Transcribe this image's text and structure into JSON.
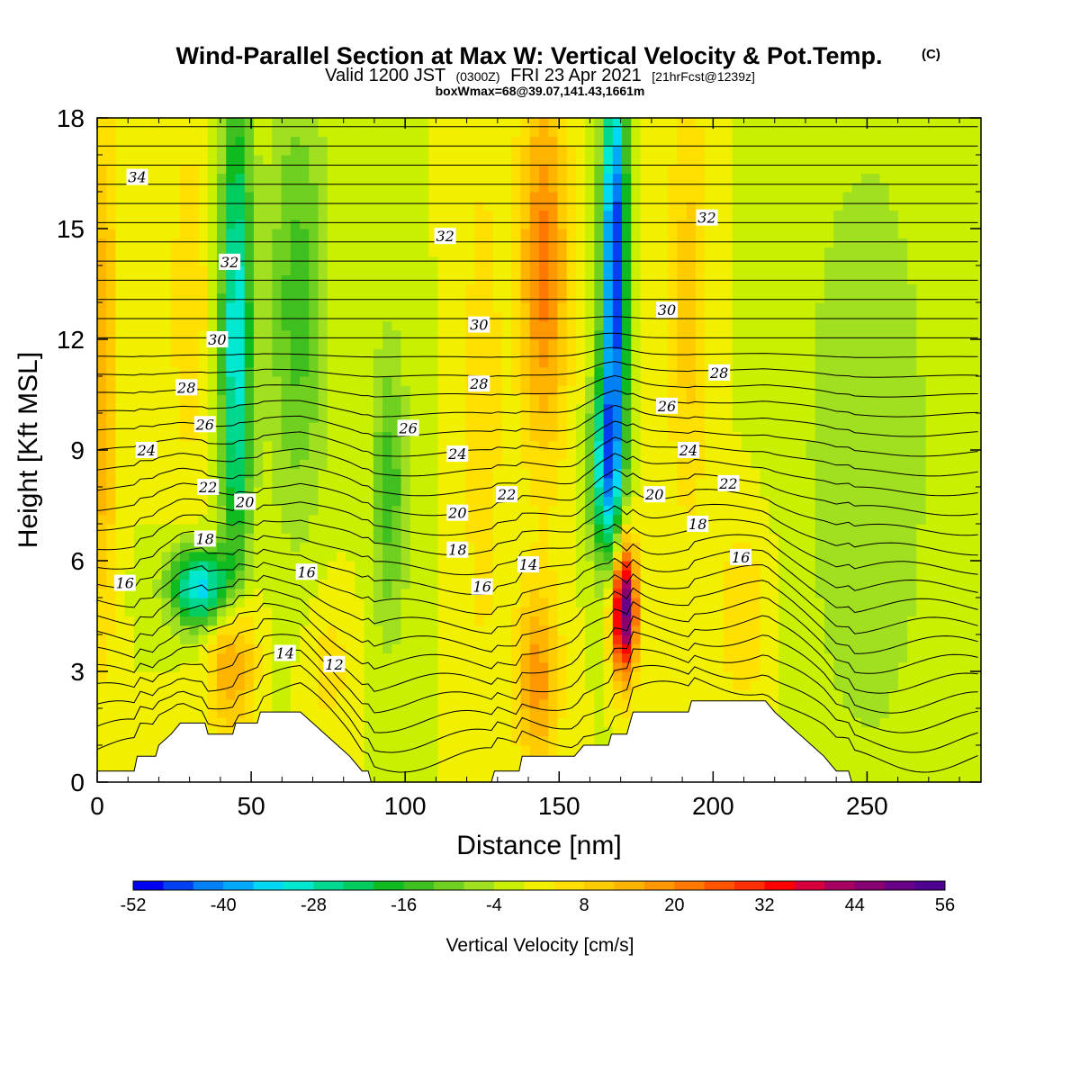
{
  "chart_data": {
    "type": "heatmap",
    "title": "Wind-Parallel Section at Max W: Vertical Velocity & Pot.Temp.",
    "title_mark": "(C)",
    "subtitle_a": "Valid 1200 JST",
    "subtitle_b": "(0300Z)",
    "subtitle_c": "FRI 23 Apr 2021",
    "subtitle_d": "[21hrFcst@1239z]",
    "subtitle2": "boxWmax=68@39.07,141.43,1661m",
    "xlabel": "Distance [nm]",
    "ylabel": "Height [Kft MSL]",
    "xlim": [
      0,
      287
    ],
    "ylim": [
      0,
      18
    ],
    "x_ticks": [
      0,
      50,
      100,
      150,
      200,
      250
    ],
    "y_ticks": [
      0,
      3,
      6,
      9,
      12,
      15,
      18
    ],
    "colorbar": {
      "label": "Vertical Velocity [cm/s]",
      "min": -52,
      "max": 56,
      "step": 4,
      "ticks": [
        -52,
        -40,
        -28,
        -16,
        -4,
        8,
        20,
        32,
        44,
        56
      ],
      "colors": [
        "#0000ee",
        "#0040f0",
        "#0080f4",
        "#00aaf8",
        "#00d8f4",
        "#00e8d0",
        "#00d890",
        "#00cc60",
        "#10bb20",
        "#40c020",
        "#70d020",
        "#a0e020",
        "#c8f000",
        "#f0f000",
        "#ffe000",
        "#ffcc00",
        "#ffb400",
        "#ff9800",
        "#ff7800",
        "#ff5400",
        "#ff3000",
        "#ff0000",
        "#d8003c",
        "#a80060",
        "#880070",
        "#680088",
        "#500090"
      ]
    },
    "wind_field": {
      "background": 0,
      "features": [
        {
          "x": 2,
          "y": 11,
          "value": 16,
          "half_width": 4,
          "half_height": 7
        },
        {
          "x": 30,
          "y": 13,
          "value": 6,
          "half_width": 8,
          "half_height": 6
        },
        {
          "x": 45,
          "y": 12,
          "value": -32,
          "half_width": 5,
          "half_height": 7
        },
        {
          "x": 34,
          "y": 5.3,
          "value": -36,
          "half_width": 10,
          "half_height": 1.1
        },
        {
          "x": 44,
          "y": 3.5,
          "value": 22,
          "half_width": 7,
          "half_height": 2.4
        },
        {
          "x": 65,
          "y": 13,
          "value": -14,
          "half_width": 10,
          "half_height": 6
        },
        {
          "x": 75,
          "y": 3.2,
          "value": 6,
          "half_width": 8,
          "half_height": 2
        },
        {
          "x": 95,
          "y": 8,
          "value": -14,
          "half_width": 6,
          "half_height": 4
        },
        {
          "x": 125,
          "y": 10,
          "value": 8,
          "half_width": 6,
          "half_height": 7
        },
        {
          "x": 145,
          "y": 14,
          "value": 22,
          "half_width": 8,
          "half_height": 5
        },
        {
          "x": 143,
          "y": 2.8,
          "value": 18,
          "half_width": 7,
          "half_height": 2.5
        },
        {
          "x": 168,
          "y": 14,
          "value": -50,
          "half_width": 4,
          "half_height": 6
        },
        {
          "x": 165,
          "y": 8.5,
          "value": -30,
          "half_width": 5,
          "half_height": 2.5
        },
        {
          "x": 171,
          "y": 4.7,
          "value": 54,
          "half_width": 4,
          "half_height": 1.8
        },
        {
          "x": 192,
          "y": 13,
          "value": 10,
          "half_width": 7,
          "half_height": 6
        },
        {
          "x": 210,
          "y": 4.5,
          "value": 8,
          "half_width": 9,
          "half_height": 2.5
        },
        {
          "x": 250,
          "y": 9,
          "value": -8,
          "half_width": 22,
          "half_height": 9
        }
      ]
    },
    "isentrope_labels": [
      {
        "text": "34",
        "x": 13,
        "y": 16.4
      },
      {
        "text": "32",
        "x": 43,
        "y": 14.1
      },
      {
        "text": "32",
        "x": 113,
        "y": 14.8
      },
      {
        "text": "32",
        "x": 198,
        "y": 15.3
      },
      {
        "text": "30",
        "x": 39,
        "y": 12.0
      },
      {
        "text": "30",
        "x": 124,
        "y": 12.4
      },
      {
        "text": "30",
        "x": 185,
        "y": 12.8
      },
      {
        "text": "28",
        "x": 29,
        "y": 10.7
      },
      {
        "text": "28",
        "x": 124,
        "y": 10.8
      },
      {
        "text": "28",
        "x": 202,
        "y": 11.1
      },
      {
        "text": "26",
        "x": 35,
        "y": 9.7
      },
      {
        "text": "26",
        "x": 101,
        "y": 9.6
      },
      {
        "text": "26",
        "x": 185,
        "y": 10.2
      },
      {
        "text": "24",
        "x": 16,
        "y": 9.0
      },
      {
        "text": "24",
        "x": 117,
        "y": 8.9
      },
      {
        "text": "24",
        "x": 192,
        "y": 9.0
      },
      {
        "text": "22",
        "x": 36,
        "y": 8.0
      },
      {
        "text": "22",
        "x": 133,
        "y": 7.8
      },
      {
        "text": "22",
        "x": 205,
        "y": 8.1
      },
      {
        "text": "20",
        "x": 48,
        "y": 7.6
      },
      {
        "text": "20",
        "x": 117,
        "y": 7.3
      },
      {
        "text": "20",
        "x": 181,
        "y": 7.8
      },
      {
        "text": "18",
        "x": 35,
        "y": 6.6
      },
      {
        "text": "18",
        "x": 117,
        "y": 6.3
      },
      {
        "text": "18",
        "x": 195,
        "y": 7.0
      },
      {
        "text": "16",
        "x": 9,
        "y": 5.4
      },
      {
        "text": "16",
        "x": 68,
        "y": 5.7
      },
      {
        "text": "16",
        "x": 125,
        "y": 5.3
      },
      {
        "text": "16",
        "x": 209,
        "y": 6.1
      },
      {
        "text": "14",
        "x": 61,
        "y": 3.5
      },
      {
        "text": "14",
        "x": 140,
        "y": 5.9
      },
      {
        "text": "12",
        "x": 77,
        "y": 3.2
      }
    ],
    "terrain_profile": [
      {
        "x": 0,
        "y": 0.3
      },
      {
        "x": 12,
        "y": 0.3
      },
      {
        "x": 13,
        "y": 0.7
      },
      {
        "x": 19,
        "y": 0.7
      },
      {
        "x": 20,
        "y": 1.0
      },
      {
        "x": 24,
        "y": 1.3
      },
      {
        "x": 27,
        "y": 1.6
      },
      {
        "x": 35,
        "y": 1.6
      },
      {
        "x": 36,
        "y": 1.3
      },
      {
        "x": 44,
        "y": 1.3
      },
      {
        "x": 45,
        "y": 1.6
      },
      {
        "x": 52,
        "y": 1.6
      },
      {
        "x": 53,
        "y": 1.9
      },
      {
        "x": 66,
        "y": 1.9
      },
      {
        "x": 70,
        "y": 1.6
      },
      {
        "x": 74,
        "y": 1.3
      },
      {
        "x": 78,
        "y": 1.0
      },
      {
        "x": 82,
        "y": 0.7
      },
      {
        "x": 86,
        "y": 0.3
      },
      {
        "x": 88,
        "y": 0.3
      },
      {
        "x": 89,
        "y": 0.0
      },
      {
        "x": 128,
        "y": 0.0
      },
      {
        "x": 129,
        "y": 0.3
      },
      {
        "x": 137,
        "y": 0.3
      },
      {
        "x": 138,
        "y": 0.7
      },
      {
        "x": 155,
        "y": 0.7
      },
      {
        "x": 158,
        "y": 1.0
      },
      {
        "x": 166,
        "y": 1.0
      },
      {
        "x": 167,
        "y": 1.3
      },
      {
        "x": 172,
        "y": 1.3
      },
      {
        "x": 173,
        "y": 1.6
      },
      {
        "x": 174,
        "y": 1.9
      },
      {
        "x": 192,
        "y": 1.9
      },
      {
        "x": 193,
        "y": 2.2
      },
      {
        "x": 217,
        "y": 2.2
      },
      {
        "x": 220,
        "y": 1.9
      },
      {
        "x": 224,
        "y": 1.6
      },
      {
        "x": 228,
        "y": 1.3
      },
      {
        "x": 232,
        "y": 1.0
      },
      {
        "x": 236,
        "y": 0.7
      },
      {
        "x": 240,
        "y": 0.3
      },
      {
        "x": 244,
        "y": 0.3
      },
      {
        "x": 245,
        "y": 0.0
      },
      {
        "x": 287,
        "y": 0.0
      }
    ]
  }
}
